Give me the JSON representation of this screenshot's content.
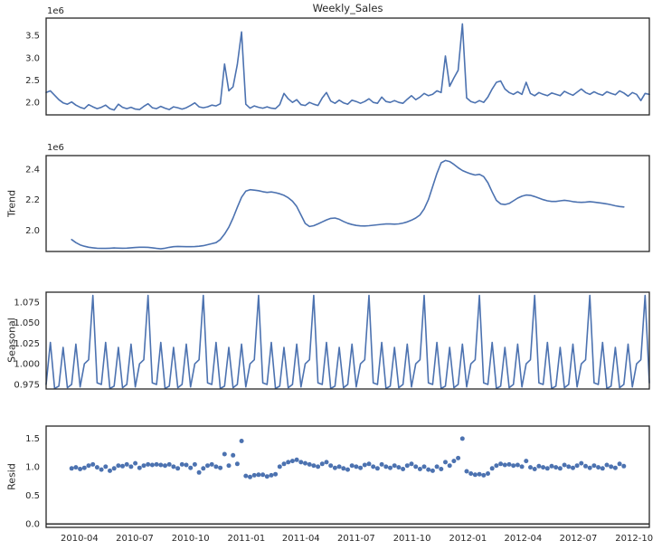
{
  "figure": {
    "title": "Weekly_Sales",
    "background_color": "#ffffff",
    "line_color": "#4c72b0",
    "marker_color": "#4c72b0",
    "spine_color": "#262626",
    "text_color": "#262626"
  },
  "x_axis": {
    "n_weeks": 143,
    "tick_labels": [
      "2010-04",
      "2010-07",
      "2010-10",
      "2011-01",
      "2011-04",
      "2011-07",
      "2011-10",
      "2012-01",
      "2012-04",
      "2012-07",
      "2012-10"
    ],
    "tick_week_positions": [
      7.86,
      20.86,
      34.0,
      47.14,
      60.0,
      73.0,
      86.14,
      99.29,
      112.29,
      125.29,
      138.43
    ]
  },
  "chart_data": [
    {
      "type": "line",
      "name": "observed",
      "title": "Weekly_Sales",
      "ylabel": "",
      "offset_label": "1e6",
      "unit_multiplier": 1000000,
      "x_start_week": 0,
      "ylim": [
        1.72,
        3.89
      ],
      "ytick_values": [
        2.0,
        2.5,
        3.0,
        3.5
      ],
      "ytick_labels": [
        "2.0",
        "2.5",
        "3.0",
        "3.5"
      ],
      "values": [
        2.22,
        2.26,
        2.16,
        2.06,
        1.99,
        1.96,
        2.01,
        1.94,
        1.89,
        1.86,
        1.95,
        1.9,
        1.86,
        1.89,
        1.94,
        1.86,
        1.83,
        1.96,
        1.89,
        1.86,
        1.89,
        1.85,
        1.84,
        1.91,
        1.97,
        1.88,
        1.86,
        1.91,
        1.87,
        1.84,
        1.9,
        1.88,
        1.85,
        1.88,
        1.93,
        1.99,
        1.9,
        1.88,
        1.9,
        1.94,
        1.92,
        1.97,
        2.86,
        2.26,
        2.35,
        2.85,
        3.58,
        1.96,
        1.87,
        1.92,
        1.89,
        1.87,
        1.9,
        1.87,
        1.86,
        1.95,
        2.2,
        2.08,
        2.0,
        2.06,
        1.95,
        1.93,
        2.0,
        1.96,
        1.93,
        2.1,
        2.22,
        2.03,
        1.98,
        2.05,
        1.99,
        1.96,
        2.05,
        2.02,
        1.98,
        2.02,
        2.08,
        2.0,
        1.98,
        2.12,
        2.02,
        2.0,
        2.04,
        2.0,
        1.98,
        2.07,
        2.15,
        2.06,
        2.12,
        2.2,
        2.15,
        2.18,
        2.26,
        2.22,
        3.04,
        2.36,
        2.55,
        2.72,
        3.76,
        2.1,
        2.02,
        1.99,
        2.04,
        2.0,
        2.12,
        2.3,
        2.45,
        2.48,
        2.3,
        2.22,
        2.18,
        2.24,
        2.18,
        2.45,
        2.2,
        2.15,
        2.22,
        2.18,
        2.15,
        2.21,
        2.18,
        2.15,
        2.25,
        2.2,
        2.16,
        2.23,
        2.3,
        2.22,
        2.18,
        2.24,
        2.19,
        2.16,
        2.24,
        2.2,
        2.17,
        2.26,
        2.21,
        2.14,
        2.22,
        2.18,
        2.04,
        2.2,
        2.18
      ]
    },
    {
      "type": "line",
      "name": "trend",
      "ylabel": "Trend",
      "offset_label": "1e6",
      "unit_multiplier": 1000000,
      "x_start_week": 6,
      "ylim": [
        1.862,
        2.487
      ],
      "ytick_values": [
        2.0,
        2.2,
        2.4
      ],
      "ytick_labels": [
        "2.0",
        "2.2",
        "2.4"
      ],
      "values": [
        1.94,
        1.92,
        1.905,
        1.896,
        1.89,
        1.886,
        1.883,
        1.882,
        1.882,
        1.883,
        1.885,
        1.884,
        1.883,
        1.884,
        1.886,
        1.888,
        1.89,
        1.89,
        1.889,
        1.886,
        1.882,
        1.879,
        1.883,
        1.889,
        1.893,
        1.895,
        1.894,
        1.893,
        1.893,
        1.894,
        1.896,
        1.9,
        1.906,
        1.913,
        1.92,
        1.94,
        1.975,
        2.02,
        2.08,
        2.15,
        2.215,
        2.255,
        2.265,
        2.262,
        2.258,
        2.252,
        2.247,
        2.25,
        2.245,
        2.238,
        2.228,
        2.212,
        2.19,
        2.155,
        2.1,
        2.045,
        2.025,
        2.03,
        2.042,
        2.055,
        2.068,
        2.078,
        2.08,
        2.072,
        2.058,
        2.046,
        2.038,
        2.032,
        2.029,
        2.028,
        2.03,
        2.033,
        2.036,
        2.039,
        2.041,
        2.041,
        2.04,
        2.042,
        2.047,
        2.055,
        2.066,
        2.08,
        2.1,
        2.14,
        2.2,
        2.285,
        2.37,
        2.44,
        2.455,
        2.448,
        2.43,
        2.408,
        2.39,
        2.378,
        2.368,
        2.36,
        2.365,
        2.35,
        2.31,
        2.25,
        2.195,
        2.172,
        2.168,
        2.175,
        2.192,
        2.21,
        2.222,
        2.23,
        2.228,
        2.22,
        2.21,
        2.2,
        2.192,
        2.188,
        2.188,
        2.192,
        2.196,
        2.192,
        2.187,
        2.184,
        2.182,
        2.184,
        2.187,
        2.184,
        2.18,
        2.176,
        2.172,
        2.166,
        2.16,
        2.155,
        2.152
      ]
    },
    {
      "type": "line",
      "name": "seasonal",
      "ylabel": "Seasonal",
      "period_weeks": 13,
      "x_start_week": 0,
      "ylim": [
        0.9695,
        1.087
      ],
      "ytick_values": [
        0.975,
        1.0,
        1.025,
        1.05,
        1.075
      ],
      "ytick_labels": [
        "0.975",
        "1.000",
        "1.025",
        "1.050",
        "1.075"
      ],
      "values": [
        0.975,
        1.026,
        0.97,
        0.973,
        1.02,
        0.971,
        0.975,
        1.024,
        0.972,
        1.0,
        1.005,
        1.083,
        0.977,
        0.975,
        1.026,
        0.97,
        0.973,
        1.02,
        0.971,
        0.975,
        1.024,
        0.972,
        1.0,
        1.005,
        1.083,
        0.977,
        0.975,
        1.026,
        0.97,
        0.973,
        1.02,
        0.971,
        0.975,
        1.024,
        0.972,
        1.0,
        1.005,
        1.083,
        0.977,
        0.975,
        1.026,
        0.97,
        0.973,
        1.02,
        0.971,
        0.975,
        1.024,
        0.972,
        1.0,
        1.005,
        1.083,
        0.977,
        0.975,
        1.026,
        0.97,
        0.973,
        1.02,
        0.971,
        0.975,
        1.024,
        0.972,
        1.0,
        1.005,
        1.083,
        0.977,
        0.975,
        1.026,
        0.97,
        0.973,
        1.02,
        0.971,
        0.975,
        1.024,
        0.972,
        1.0,
        1.005,
        1.083,
        0.977,
        0.975,
        1.026,
        0.97,
        0.973,
        1.02,
        0.971,
        0.975,
        1.024,
        0.972,
        1.0,
        1.005,
        1.083,
        0.977,
        0.975,
        1.026,
        0.97,
        0.973,
        1.02,
        0.971,
        0.975,
        1.024,
        0.972,
        1.0,
        1.005,
        1.083,
        0.977,
        0.975,
        1.026,
        0.97,
        0.973,
        1.02,
        0.971,
        0.975,
        1.024,
        0.972,
        1.0,
        1.005,
        1.083,
        0.977,
        0.975,
        1.026,
        0.97,
        0.973,
        1.02,
        0.971,
        0.975,
        1.024,
        0.972,
        1.0,
        1.005,
        1.083,
        0.977,
        0.975,
        1.026,
        0.97,
        0.973,
        1.02,
        0.971,
        0.975,
        1.024,
        0.972,
        1.0,
        1.005,
        1.083,
        0.977
      ]
    },
    {
      "type": "scatter",
      "name": "resid",
      "ylabel": "Resid",
      "x_start_week": 6,
      "ylim": [
        -0.06,
        1.71
      ],
      "ytick_values": [
        0.0,
        0.5,
        1.0,
        1.5
      ],
      "ytick_labels": [
        "0.0",
        "0.5",
        "1.0",
        "1.5"
      ],
      "zero_line": 0.0,
      "values": [
        0.97,
        0.99,
        0.96,
        0.98,
        1.02,
        1.04,
        0.99,
        0.95,
        1.0,
        0.93,
        0.97,
        1.02,
        1.01,
        1.04,
        1.0,
        1.06,
        0.98,
        1.02,
        1.04,
        1.03,
        1.04,
        1.03,
        1.02,
        1.04,
        1.0,
        0.97,
        1.04,
        1.03,
        0.98,
        1.04,
        0.9,
        0.97,
        1.02,
        1.04,
        1.0,
        0.98,
        1.22,
        1.02,
        1.2,
        1.05,
        1.45,
        0.84,
        0.82,
        0.85,
        0.86,
        0.86,
        0.83,
        0.85,
        0.87,
        1.0,
        1.05,
        1.08,
        1.1,
        1.12,
        1.08,
        1.06,
        1.04,
        1.02,
        1.0,
        1.05,
        1.08,
        1.02,
        0.98,
        1.0,
        0.97,
        0.95,
        1.02,
        1.0,
        0.98,
        1.03,
        1.05,
        1.0,
        0.97,
        1.04,
        1.0,
        0.98,
        1.02,
        0.99,
        0.96,
        1.02,
        1.05,
        1.0,
        0.96,
        1.0,
        0.95,
        0.93,
        1.0,
        0.96,
        1.08,
        1.02,
        1.1,
        1.15,
        1.49,
        0.92,
        0.88,
        0.86,
        0.87,
        0.85,
        0.88,
        0.97,
        1.02,
        1.05,
        1.03,
        1.04,
        1.02,
        1.03,
        1.0,
        1.1,
        0.99,
        0.96,
        1.01,
        0.99,
        0.97,
        1.01,
        0.99,
        0.97,
        1.03,
        1.0,
        0.98,
        1.02,
        1.06,
        1.01,
        0.98,
        1.02,
        0.99,
        0.97,
        1.03,
        1.0,
        0.98,
        1.05,
        1.01
      ]
    }
  ]
}
